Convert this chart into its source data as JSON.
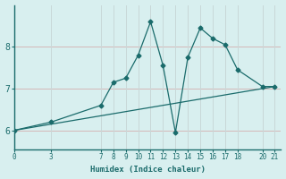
{
  "xlabel": "Humidex (Indice chaleur)",
  "ylabel": "",
  "background_color": "#d8efef",
  "line_color": "#1a6b6b",
  "grid_color_h": "#d4b8b8",
  "grid_color_v": "#c8d8d8",
  "xticks": [
    0,
    3,
    7,
    8,
    9,
    10,
    11,
    12,
    13,
    14,
    15,
    16,
    17,
    18,
    20,
    21
  ],
  "yticks": [
    6,
    7,
    8
  ],
  "xlim": [
    0,
    21.5
  ],
  "ylim": [
    5.55,
    9.0
  ],
  "curve1_x": [
    0,
    3,
    7,
    8,
    9,
    10,
    11,
    12,
    13,
    14,
    15,
    16,
    17,
    18,
    20,
    21
  ],
  "curve1_y": [
    6.0,
    6.2,
    6.6,
    7.15,
    7.25,
    7.8,
    8.6,
    7.55,
    5.95,
    7.75,
    8.45,
    8.2,
    8.05,
    7.45,
    7.05,
    7.05
  ],
  "curve2_x": [
    0,
    21
  ],
  "curve2_y": [
    6.0,
    7.05
  ],
  "markersize": 2.5,
  "linewidth": 0.9
}
